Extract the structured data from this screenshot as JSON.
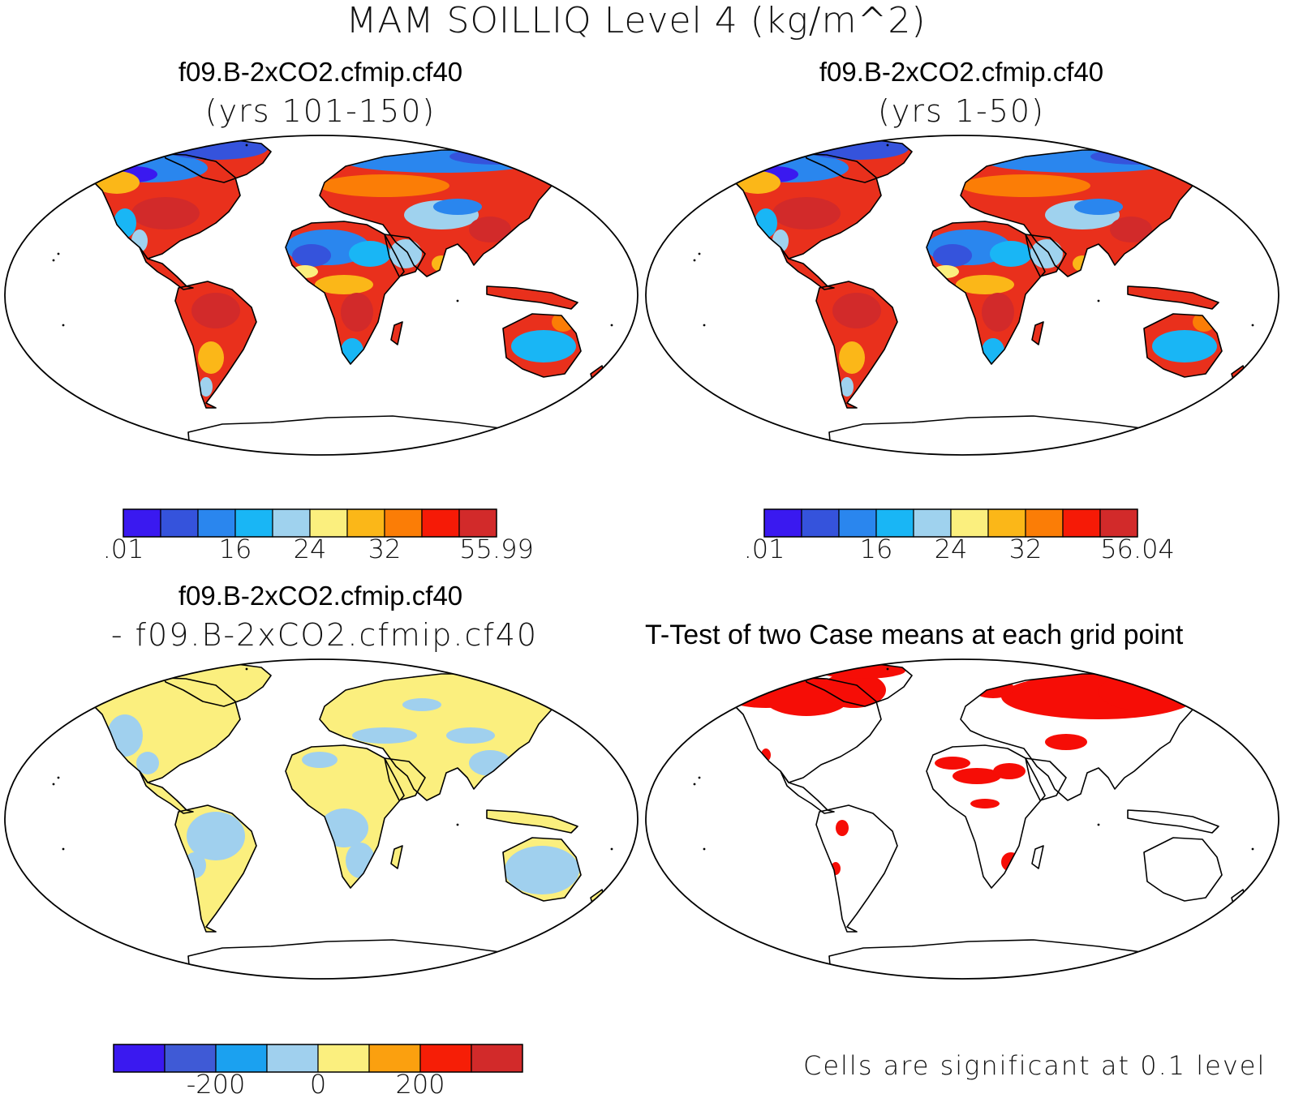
{
  "page_title": "MAM SOILLIQ Level 4 (kg/m^2)",
  "panels": [
    {
      "title": "f09.B-2xCO2.cfmip.cf40",
      "subtitle": "(yrs 101-150)",
      "fill": "full",
      "colorbar": {
        "colors": [
          "#3a19f0",
          "#3553dc",
          "#2a86ee",
          "#19b6f5",
          "#9fd2ee",
          "#fbef7e",
          "#fbb718",
          "#fb7d06",
          "#f61a06",
          "#d22a2a"
        ],
        "labels": [
          ".01",
          "16",
          "24",
          "32",
          "55.99"
        ]
      }
    },
    {
      "title": "f09.B-2xCO2.cfmip.cf40",
      "subtitle": "(yrs 1-50)",
      "fill": "full",
      "colorbar": {
        "colors": [
          "#3a19f0",
          "#3553dc",
          "#2a86ee",
          "#19b6f5",
          "#9fd2ee",
          "#fbef7e",
          "#fbb718",
          "#fb7d06",
          "#f61a06",
          "#d22a2a"
        ],
        "labels": [
          ".01",
          "16",
          "24",
          "32",
          "56.04"
        ]
      }
    },
    {
      "title": "f09.B-2xCO2.cfmip.cf40",
      "subtitle": "- f09.B-2xCO2.cfmip.cf40",
      "fill": "diff",
      "colorbar": {
        "colors": [
          "#3a19f0",
          "#3f5ad6",
          "#1ba1f0",
          "#a0d0ee",
          "#fbef7e",
          "#fba00f",
          "#f61e06",
          "#d22a2a"
        ],
        "labels": [
          "-200",
          "0",
          "200"
        ]
      }
    },
    {
      "title": "T-Test of two Case means at each grid point",
      "fill": "sig",
      "note": "Cells are significant at 0.1 level"
    }
  ]
}
